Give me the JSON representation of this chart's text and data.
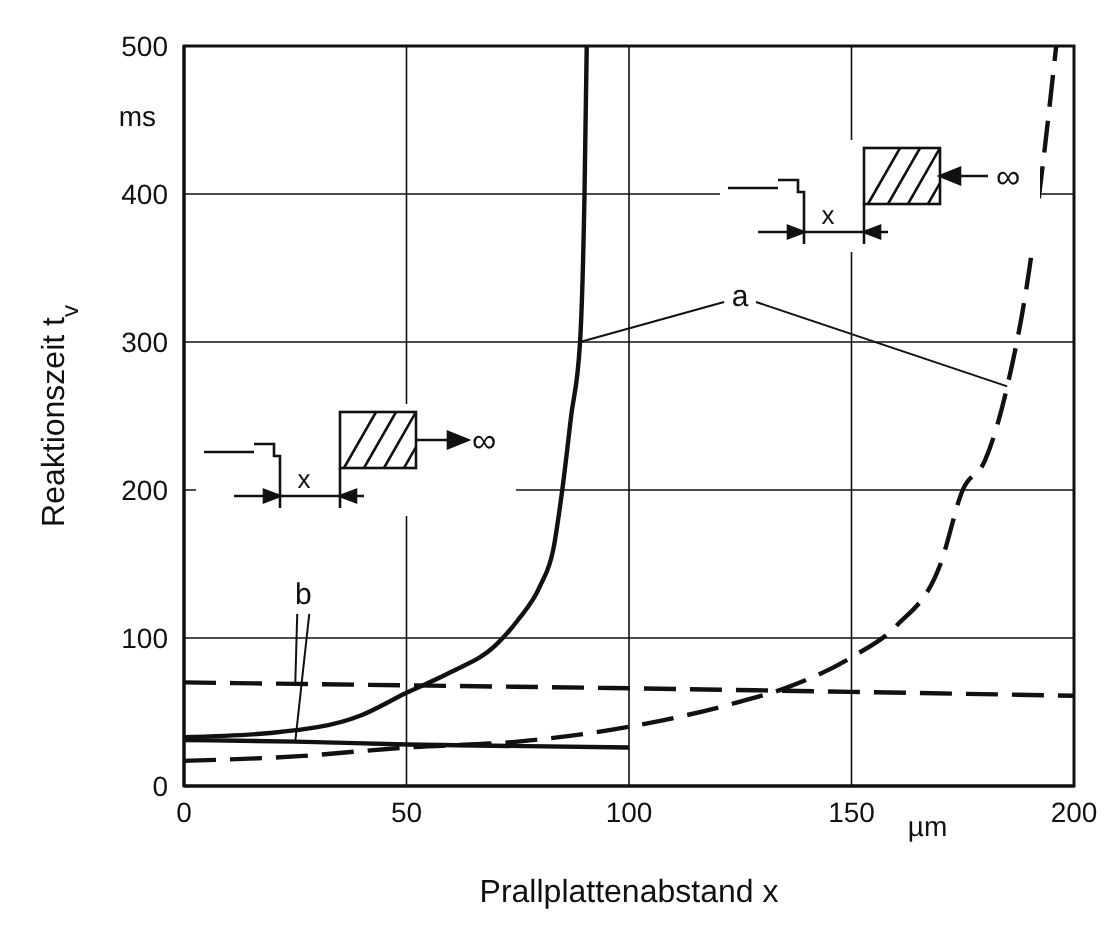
{
  "chart_data": {
    "type": "line",
    "xlabel": "Prallplattenabstand x",
    "ylabel": "Reaktionszeit t$_{v}$",
    "xlim": [
      0,
      200
    ],
    "xticks": [
      0,
      50,
      100,
      150,
      200
    ],
    "ylim": [
      0,
      500
    ],
    "yticks": [
      0,
      100,
      200,
      300,
      400,
      500
    ],
    "grid": true,
    "marker": "none",
    "series": [
      {
        "color": "#111111",
        "line_style": "solid",
        "x": [
          0,
          20,
          40,
          50,
          60,
          70,
          75,
          80,
          83,
          85,
          87,
          89,
          90,
          90.5
        ],
        "values": [
          33,
          36,
          48,
          63,
          77,
          95,
          112,
          135,
          160,
          200,
          250,
          300,
          400,
          500
        ]
      },
      {
        "color": "#111111",
        "line_style": "dashed",
        "x": [
          0,
          25,
          50,
          75,
          100,
          125,
          135,
          150,
          160,
          170,
          175,
          180,
          185,
          190,
          193,
          196
        ],
        "values": [
          17,
          20,
          26,
          30,
          40,
          57,
          66,
          87,
          108,
          150,
          200,
          220,
          270,
          350,
          420,
          500
        ]
      },
      {
        "color": "#111111",
        "line_style": "solid",
        "x": [
          0,
          25,
          50,
          100
        ],
        "values": [
          31,
          30,
          28,
          26
        ]
      },
      {
        "color": "#111111",
        "line_style": "dashed",
        "x": [
          0,
          25,
          100,
          200
        ],
        "values": [
          70,
          69,
          66,
          61
        ]
      }
    ],
    "annotations": [
      "ms",
      "µm",
      {
        "text": "a",
        "x": 89,
        "y": 300
      },
      {
        "text": "b",
        "x": 25,
        "y": 69
      },
      "x",
      "∞",
      "x",
      "∞"
    ]
  }
}
